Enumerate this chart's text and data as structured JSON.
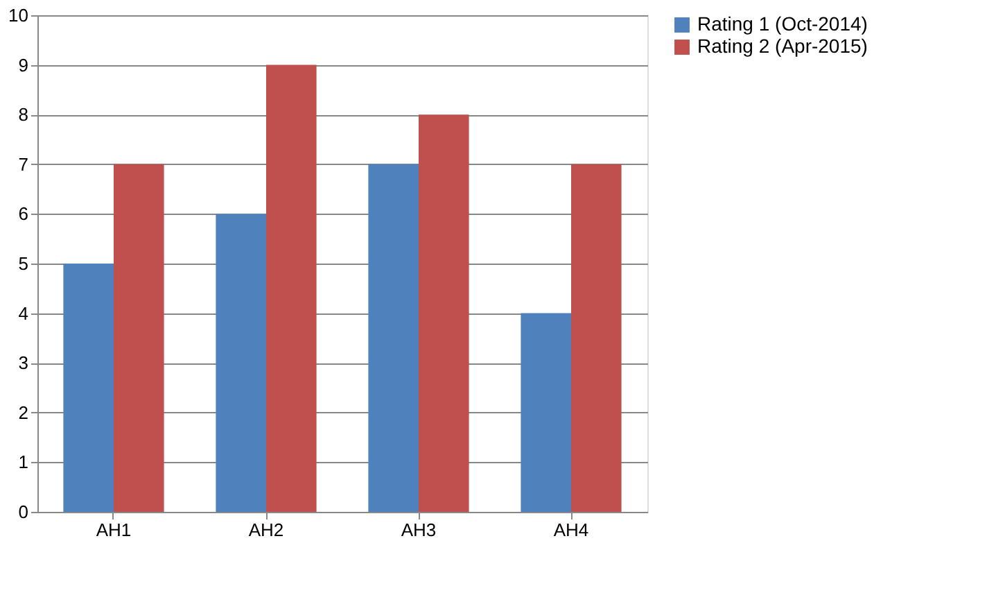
{
  "chart_data": {
    "type": "bar",
    "categories": [
      "AH1",
      "AH2",
      "AH3",
      "AH4"
    ],
    "series": [
      {
        "name": "Rating 1 (Oct-2014)",
        "color": "#4f81bd",
        "values": [
          5,
          6,
          7,
          4
        ]
      },
      {
        "name": "Rating 2 (Apr-2015)",
        "color": "#c0504d",
        "values": [
          7,
          9,
          8,
          7
        ]
      }
    ],
    "ylim": [
      0,
      10
    ],
    "yticks": [
      0,
      1,
      2,
      3,
      4,
      5,
      6,
      7,
      8,
      9,
      10
    ],
    "grid": "y",
    "legend": "right"
  }
}
